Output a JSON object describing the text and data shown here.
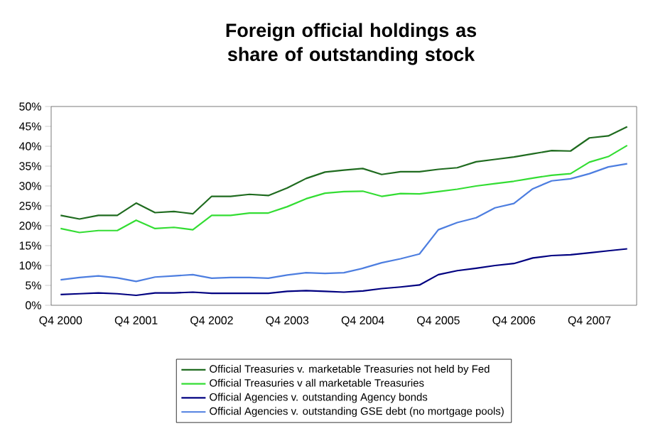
{
  "chart_data": {
    "type": "line",
    "title": "Foreign official holdings as share of outstanding stock",
    "categories": [
      "Q4 2000",
      null,
      null,
      null,
      "Q4 2001",
      null,
      null,
      null,
      "Q4 2002",
      null,
      null,
      null,
      "Q4 2003",
      null,
      null,
      null,
      "Q4 2004",
      null,
      null,
      null,
      "Q4 2005",
      null,
      null,
      null,
      "Q4 2006",
      null,
      null,
      null,
      "Q4 2007",
      null,
      null
    ],
    "series": [
      {
        "name": "Official Treasuries v. marketable Treasuries not held by Fed",
        "color": "#1f6b1f",
        "values": [
          22.6,
          21.7,
          22.6,
          22.6,
          25.7,
          23.3,
          23.6,
          23.0,
          27.4,
          27.4,
          27.9,
          27.6,
          29.5,
          31.9,
          33.5,
          34.0,
          34.4,
          32.9,
          33.6,
          33.6,
          34.2,
          34.6,
          36.1,
          36.7,
          37.3,
          38.1,
          38.9,
          38.8,
          42.1,
          42.6,
          44.9
        ]
      },
      {
        "name": "Official Treasuries v all marketable Treasuries",
        "color": "#33dd33",
        "values": [
          19.3,
          18.3,
          18.8,
          18.8,
          21.4,
          19.3,
          19.6,
          19.0,
          22.6,
          22.6,
          23.2,
          23.2,
          24.8,
          26.8,
          28.2,
          28.6,
          28.7,
          27.4,
          28.1,
          28.0,
          28.6,
          29.2,
          30.0,
          30.6,
          31.2,
          32.0,
          32.7,
          33.1,
          36.0,
          37.4,
          40.2
        ]
      },
      {
        "name": "Official Agencies v. outstanding Agency bonds",
        "color": "#000080",
        "values": [
          2.7,
          2.9,
          3.1,
          2.9,
          2.5,
          3.1,
          3.1,
          3.3,
          3.0,
          3.0,
          3.0,
          3.0,
          3.5,
          3.7,
          3.5,
          3.3,
          3.6,
          4.2,
          4.6,
          5.1,
          7.7,
          8.7,
          9.3,
          10.0,
          10.5,
          11.9,
          12.5,
          12.7,
          13.2,
          13.7,
          14.2
        ]
      },
      {
        "name": "Official Agencies v. outstanding GSE debt (no mortgage pools)",
        "color": "#4d7ee0",
        "values": [
          6.4,
          7.0,
          7.4,
          6.9,
          6.0,
          7.1,
          7.4,
          7.7,
          6.8,
          7.0,
          7.0,
          6.8,
          7.6,
          8.2,
          8.0,
          8.2,
          9.3,
          10.7,
          11.7,
          12.9,
          19.0,
          20.8,
          22.0,
          24.5,
          25.6,
          29.3,
          31.3,
          31.8,
          33.1,
          34.8,
          35.6
        ]
      }
    ],
    "ylim": [
      0,
      50
    ],
    "yticks": [
      {
        "value": 0,
        "label": "0%"
      },
      {
        "value": 5,
        "label": "5%"
      },
      {
        "value": 10,
        "label": "10%"
      },
      {
        "value": 15,
        "label": "15%"
      },
      {
        "value": 20,
        "label": "20%"
      },
      {
        "value": 25,
        "label": "25%"
      },
      {
        "value": 30,
        "label": "30%"
      },
      {
        "value": 35,
        "label": "35%"
      },
      {
        "value": 40,
        "label": "40%"
      },
      {
        "value": 45,
        "label": "45%"
      },
      {
        "value": 50,
        "label": "50%"
      }
    ],
    "grid": false,
    "legend": "bottom",
    "marker": "none",
    "line_style": "solid"
  }
}
